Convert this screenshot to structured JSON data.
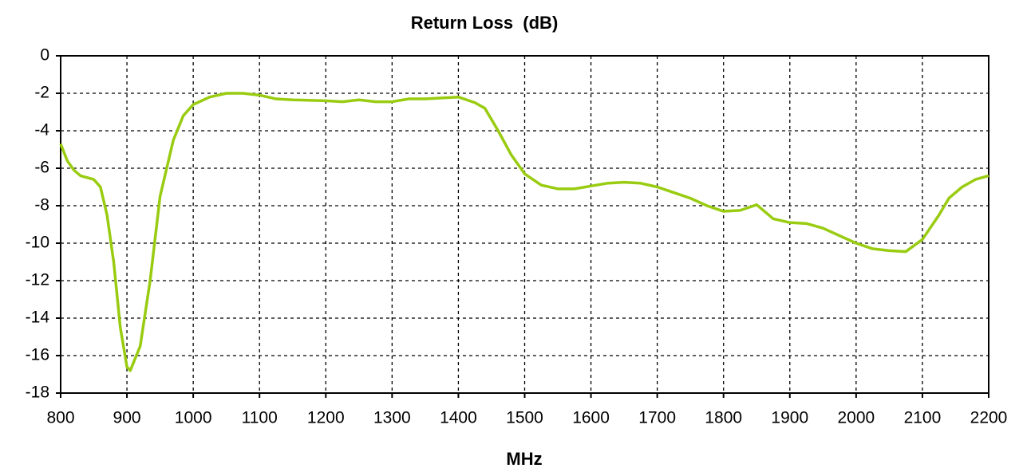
{
  "chart_data": {
    "type": "line",
    "title": "Return Loss  (dB)",
    "x_label": "MHz",
    "xlim": [
      800,
      2200
    ],
    "xticks": [
      800,
      900,
      1000,
      1100,
      1200,
      1300,
      1400,
      1500,
      1600,
      1700,
      1800,
      1900,
      2000,
      2100,
      2200
    ],
    "ylim": [
      -18,
      0
    ],
    "yticks": [
      0,
      -2,
      -4,
      -6,
      -8,
      -10,
      -12,
      -14,
      -16,
      -18
    ],
    "grid": true,
    "x": [
      800,
      810,
      820,
      830,
      850,
      860,
      870,
      880,
      890,
      900,
      905,
      920,
      935,
      950,
      970,
      985,
      1000,
      1025,
      1050,
      1075,
      1100,
      1125,
      1150,
      1200,
      1225,
      1250,
      1275,
      1300,
      1325,
      1350,
      1375,
      1400,
      1425,
      1440,
      1460,
      1480,
      1500,
      1525,
      1550,
      1575,
      1600,
      1625,
      1650,
      1675,
      1700,
      1725,
      1750,
      1775,
      1800,
      1825,
      1850,
      1875,
      1900,
      1925,
      1950,
      1975,
      2000,
      2025,
      2050,
      2075,
      2100,
      2125,
      2140,
      2160,
      2180,
      2200
    ],
    "series": [
      {
        "color": "#99cc11",
        "values": [
          -4.7,
          -5.6,
          -6.1,
          -6.4,
          -6.6,
          -7.0,
          -8.5,
          -11,
          -14.5,
          -16.6,
          -16.8,
          -15.5,
          -12,
          -7.5,
          -4.5,
          -3.2,
          -2.6,
          -2.2,
          -2.0,
          -2.0,
          -2.1,
          -2.3,
          -2.35,
          -2.4,
          -2.45,
          -2.35,
          -2.45,
          -2.45,
          -2.3,
          -2.3,
          -2.25,
          -2.2,
          -2.5,
          -2.8,
          -4.0,
          -5.3,
          -6.3,
          -6.9,
          -7.1,
          -7.1,
          -6.95,
          -6.8,
          -6.75,
          -6.8,
          -7.0,
          -7.3,
          -7.6,
          -8.0,
          -8.3,
          -8.25,
          -7.95,
          -8.7,
          -8.9,
          -8.95,
          -9.2,
          -9.6,
          -10.0,
          -10.3,
          -10.4,
          -10.45,
          -9.8,
          -8.5,
          -7.6,
          -7.0,
          -6.6,
          -6.4
        ]
      }
    ]
  }
}
